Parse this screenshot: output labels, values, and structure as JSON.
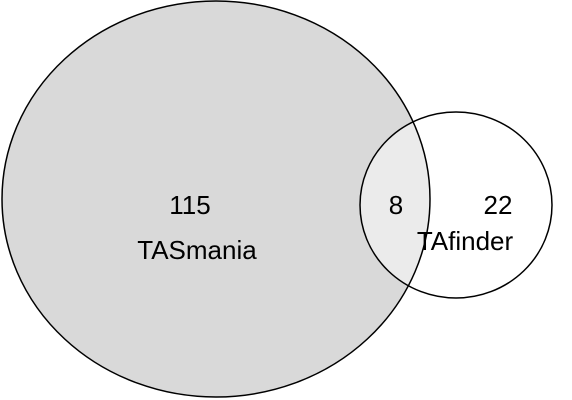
{
  "chart_data": {
    "type": "venn",
    "sets": [
      {
        "name": "TASmania",
        "value": 115,
        "color": "#d9d9d9"
      },
      {
        "name": "TAfinder",
        "value": 22,
        "color": "#ffffff"
      }
    ],
    "intersection": {
      "value": 8,
      "color": "#ebebeb"
    }
  }
}
